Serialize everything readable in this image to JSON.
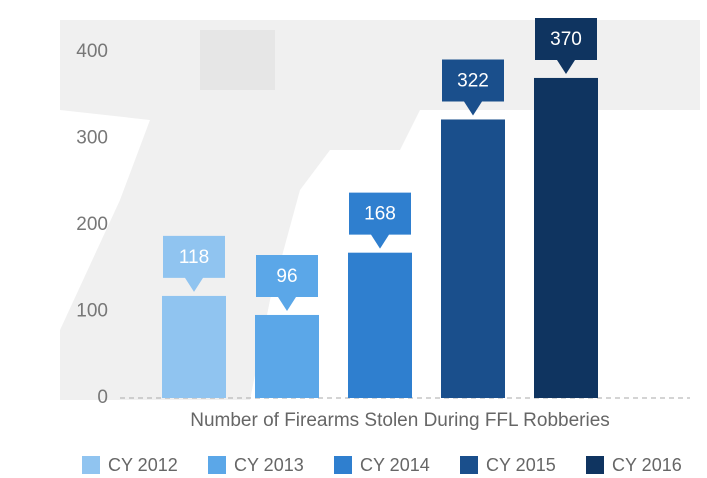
{
  "chart_data": {
    "type": "bar",
    "categories": [
      "Number of Firearms Stolen During FFL Robberies"
    ],
    "series": [
      {
        "name": "CY 2012",
        "color": "#90c4f0",
        "values": [
          118
        ]
      },
      {
        "name": "CY 2013",
        "color": "#5ba7e8",
        "values": [
          96
        ]
      },
      {
        "name": "CY 2014",
        "color": "#2f7fcf",
        "values": [
          168
        ]
      },
      {
        "name": "CY 2015",
        "color": "#1a4f8c",
        "values": [
          322
        ]
      },
      {
        "name": "CY 2016",
        "color": "#0f3460",
        "values": [
          370
        ]
      }
    ],
    "ylim": [
      0,
      400
    ],
    "yticks": [
      0,
      100,
      200,
      300,
      400
    ],
    "grid": false,
    "legend": "bottom"
  }
}
